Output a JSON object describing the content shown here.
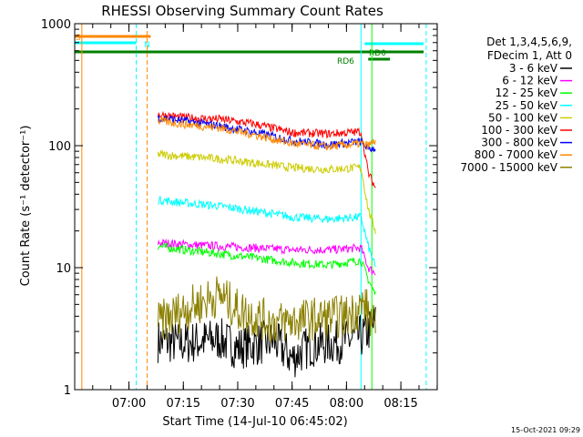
{
  "chart_data": {
    "type": "line",
    "title": "RHESSI Observing Summary Count Rates",
    "xlabel": "Start Time (14-Jul-10 06:45:02)",
    "ylabel": "Count Rate (s⁻¹ detector⁻¹)",
    "yscale": "log",
    "ylim": [
      1,
      1000
    ],
    "xlim": [
      "06:45:02",
      "08:25:02"
    ],
    "y_ticks": [
      "1",
      "10",
      "100",
      "1000"
    ],
    "x_ticks": [
      "07:00",
      "07:15",
      "07:30",
      "07:45",
      "08:00",
      "08:15"
    ],
    "timestamp": "15-Oct-2021 09:29",
    "legend": {
      "position": "top-right",
      "header": [
        "Det 1,3,4,5,6,9,",
        "FDecim 1, Att 0"
      ]
    },
    "series": [
      {
        "name": "3 - 6 keV",
        "color": "#000000",
        "points": [
          [
            "07:08",
            2.5
          ],
          [
            "07:15",
            2.4
          ],
          [
            "07:25",
            2.6
          ],
          [
            "07:30",
            2.2
          ],
          [
            "07:40",
            2.5
          ],
          [
            "07:45",
            1.8
          ],
          [
            "07:50",
            2.3
          ],
          [
            "08:00",
            2.5
          ],
          [
            "08:05",
            2.8
          ],
          [
            "08:08",
            3.5
          ]
        ]
      },
      {
        "name": "6 - 12 keV",
        "color": "#ff00ff",
        "points": [
          [
            "07:08",
            16
          ],
          [
            "07:15",
            15.5
          ],
          [
            "07:25",
            15
          ],
          [
            "07:35",
            14.5
          ],
          [
            "07:45",
            14
          ],
          [
            "07:55",
            14
          ],
          [
            "08:04",
            14.5
          ],
          [
            "08:06",
            10
          ],
          [
            "08:08",
            9
          ]
        ]
      },
      {
        "name": "12 - 25 keV",
        "color": "#00ff00",
        "points": [
          [
            "07:08",
            15
          ],
          [
            "07:15",
            14
          ],
          [
            "07:25",
            13
          ],
          [
            "07:35",
            12
          ],
          [
            "07:45",
            11
          ],
          [
            "07:55",
            10.5
          ],
          [
            "08:04",
            11.5
          ],
          [
            "08:06",
            8
          ],
          [
            "08:08",
            6
          ]
        ]
      },
      {
        "name": "25 - 50 keV",
        "color": "#00ffff",
        "points": [
          [
            "07:08",
            36
          ],
          [
            "07:15",
            34
          ],
          [
            "07:25",
            32
          ],
          [
            "07:35",
            29
          ],
          [
            "07:45",
            26
          ],
          [
            "07:55",
            25
          ],
          [
            "08:04",
            26
          ],
          [
            "08:06",
            15
          ],
          [
            "08:08",
            10
          ]
        ]
      },
      {
        "name": "50 - 100 keV",
        "color": "#cccc00",
        "points": [
          [
            "07:08",
            85
          ],
          [
            "07:15",
            82
          ],
          [
            "07:25",
            78
          ],
          [
            "07:35",
            72
          ],
          [
            "07:45",
            66
          ],
          [
            "07:55",
            64
          ],
          [
            "08:04",
            66
          ],
          [
            "08:06",
            30
          ],
          [
            "08:08",
            20
          ]
        ]
      },
      {
        "name": "100 - 300 keV",
        "color": "#ff0000",
        "points": [
          [
            "07:08",
            180
          ],
          [
            "07:15",
            170
          ],
          [
            "07:25",
            165
          ],
          [
            "07:35",
            150
          ],
          [
            "07:45",
            128
          ],
          [
            "07:55",
            125
          ],
          [
            "08:04",
            130
          ],
          [
            "08:06",
            60
          ],
          [
            "08:08",
            45
          ]
        ]
      },
      {
        "name": "300 - 800 keV",
        "color": "#0000ff",
        "points": [
          [
            "07:08",
            170
          ],
          [
            "07:15",
            160
          ],
          [
            "07:25",
            145
          ],
          [
            "07:35",
            128
          ],
          [
            "07:45",
            110
          ],
          [
            "07:55",
            102
          ],
          [
            "08:04",
            108
          ],
          [
            "08:06",
            95
          ],
          [
            "08:08",
            95
          ]
        ]
      },
      {
        "name": "800 - 7000 keV",
        "color": "#ff8800",
        "points": [
          [
            "07:08",
            160
          ],
          [
            "07:15",
            150
          ],
          [
            "07:25",
            140
          ],
          [
            "07:35",
            122
          ],
          [
            "07:45",
            104
          ],
          [
            "07:55",
            98
          ],
          [
            "08:04",
            104
          ],
          [
            "08:06",
            100
          ],
          [
            "08:08",
            110
          ]
        ]
      },
      {
        "name": "7000 - 15000 keV",
        "color": "#8b8000",
        "points": [
          [
            "07:08",
            3.5
          ],
          [
            "07:15",
            4.5
          ],
          [
            "07:25",
            6
          ],
          [
            "07:30",
            4.5
          ],
          [
            "07:40",
            3.5
          ],
          [
            "07:50",
            3.8
          ],
          [
            "08:00",
            4
          ],
          [
            "08:05",
            5
          ],
          [
            "08:08",
            3
          ]
        ]
      }
    ],
    "flags": [
      {
        "label": "S",
        "color": "#ff8800",
        "start": "06:45:02",
        "end": "07:06"
      },
      {
        "label": "N",
        "color": "#00ffff",
        "start": "06:45:02",
        "end": "07:02"
      },
      {
        "label": "",
        "color": "#00ffff",
        "start": "08:05",
        "end": "08:25:02"
      },
      {
        "label": "",
        "color": "#008000",
        "start": "06:45:02",
        "end": "08:25:02"
      },
      {
        "label": "RD6",
        "color": "#008000",
        "start": "08:06",
        "end": "08:12"
      },
      {
        "label": "RD0",
        "color": "#008000",
        "start": "",
        "end": ""
      }
    ],
    "vlines": [
      {
        "time": "06:47",
        "color": "#ff8800",
        "style": "solid"
      },
      {
        "time": "07:02",
        "color": "#00ffff",
        "style": "dashed"
      },
      {
        "time": "07:05",
        "color": "#ff8800",
        "style": "dashed"
      },
      {
        "time": "08:04",
        "color": "#00ffff",
        "style": "solid"
      },
      {
        "time": "08:07",
        "color": "#00ff00",
        "style": "solid"
      },
      {
        "time": "08:22",
        "color": "#00ffff",
        "style": "dashed"
      }
    ]
  }
}
